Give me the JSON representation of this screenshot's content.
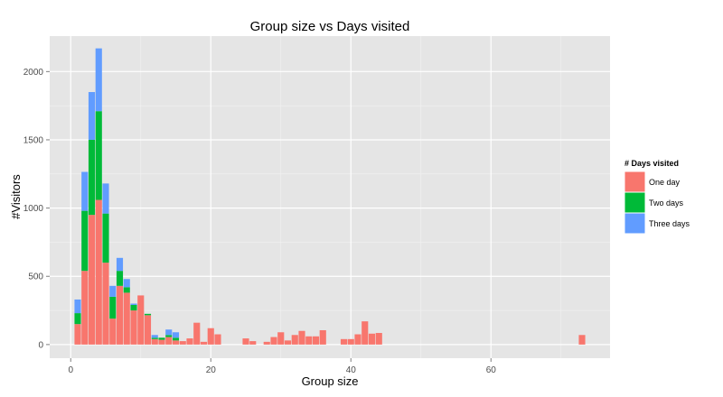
{
  "chart_data": {
    "type": "bar",
    "stacked": true,
    "title": "Group size vs Days visited",
    "xlabel": "Group size",
    "ylabel": "#Visitors",
    "xlim": [
      -3,
      77
    ],
    "ylim": [
      -100,
      2260
    ],
    "x_ticks": [
      0,
      20,
      40,
      60
    ],
    "y_ticks": [
      0,
      500,
      1000,
      1500,
      2000
    ],
    "x_tick_labels": [
      "0",
      "20",
      "40",
      "60"
    ],
    "y_tick_labels": [
      "0",
      "500",
      "1000",
      "1500",
      "2000"
    ],
    "grid": true,
    "legend": {
      "title": "# Days visited",
      "position": "right",
      "entries": [
        {
          "label": "One day",
          "color": "#F8766D"
        },
        {
          "label": "Two days",
          "color": "#00BA38"
        },
        {
          "label": "Three days",
          "color": "#619CFF"
        }
      ]
    },
    "x": [
      1,
      2,
      3,
      4,
      5,
      6,
      7,
      8,
      9,
      10,
      11,
      12,
      13,
      14,
      15,
      16,
      17,
      18,
      19,
      20,
      21,
      25,
      26,
      28,
      29,
      30,
      31,
      32,
      33,
      34,
      35,
      36,
      37,
      39,
      40,
      41,
      42,
      43,
      44,
      73
    ],
    "series": [
      {
        "name": "One day",
        "color": "#F8766D",
        "values": [
          150,
          540,
          950,
          1060,
          600,
          190,
          430,
          380,
          250,
          360,
          215,
          40,
          35,
          55,
          30,
          25,
          45,
          160,
          20,
          120,
          75,
          45,
          25,
          20,
          55,
          90,
          30,
          70,
          100,
          60,
          60,
          105,
          0,
          40,
          40,
          75,
          170,
          80,
          85,
          70
        ]
      },
      {
        "name": "Two days",
        "color": "#00BA38",
        "values": [
          80,
          440,
          550,
          650,
          360,
          160,
          110,
          40,
          40,
          0,
          10,
          10,
          15,
          15,
          20,
          0,
          0,
          0,
          0,
          0,
          0,
          0,
          0,
          0,
          0,
          0,
          0,
          0,
          0,
          0,
          0,
          0,
          0,
          0,
          0,
          0,
          0,
          0,
          0,
          0
        ]
      },
      {
        "name": "Three days",
        "color": "#619CFF",
        "values": [
          100,
          285,
          350,
          460,
          220,
          80,
          95,
          60,
          10,
          0,
          0,
          20,
          0,
          40,
          40,
          0,
          0,
          0,
          0,
          0,
          0,
          0,
          0,
          0,
          0,
          0,
          0,
          0,
          0,
          0,
          0,
          0,
          0,
          0,
          0,
          0,
          0,
          0,
          0,
          0
        ]
      }
    ]
  }
}
